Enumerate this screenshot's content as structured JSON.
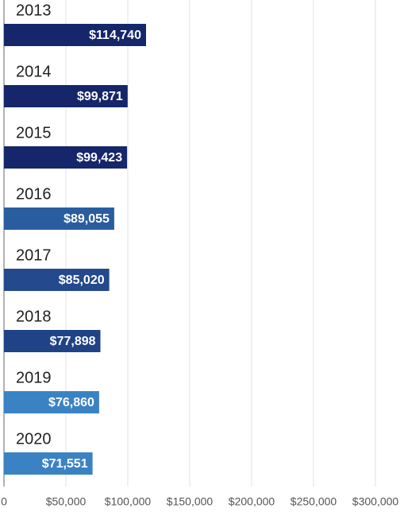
{
  "chart_data": {
    "type": "bar",
    "orientation": "horizontal",
    "categories": [
      "2013",
      "2014",
      "2015",
      "2016",
      "2017",
      "2018",
      "2019",
      "2020"
    ],
    "values": [
      114740,
      99871,
      99423,
      89055,
      85020,
      77898,
      76860,
      71551
    ],
    "value_labels": [
      "$114,740",
      "$99,871",
      "$99,423",
      "$89,055",
      "$85,020",
      "$77,898",
      "$76,860",
      "$71,551"
    ],
    "colors": [
      "#15266b",
      "#15266b",
      "#15266b",
      "#2a5d9f",
      "#24498c",
      "#1f4386",
      "#3a82c4",
      "#3a82c4"
    ],
    "xlim": [
      0,
      300000
    ],
    "xticks": [
      0,
      {
        "value": 50000,
        "label": "$50,000"
      },
      {
        "value": 100000,
        "label": "$100,000"
      },
      {
        "value": 150000,
        "label": "$150,000"
      },
      {
        "value": 200000,
        "label": "$200,000"
      },
      {
        "value": 250000,
        "label": "$250,000"
      },
      {
        "value": 300000,
        "label": "$300,000"
      }
    ],
    "grid": true
  }
}
